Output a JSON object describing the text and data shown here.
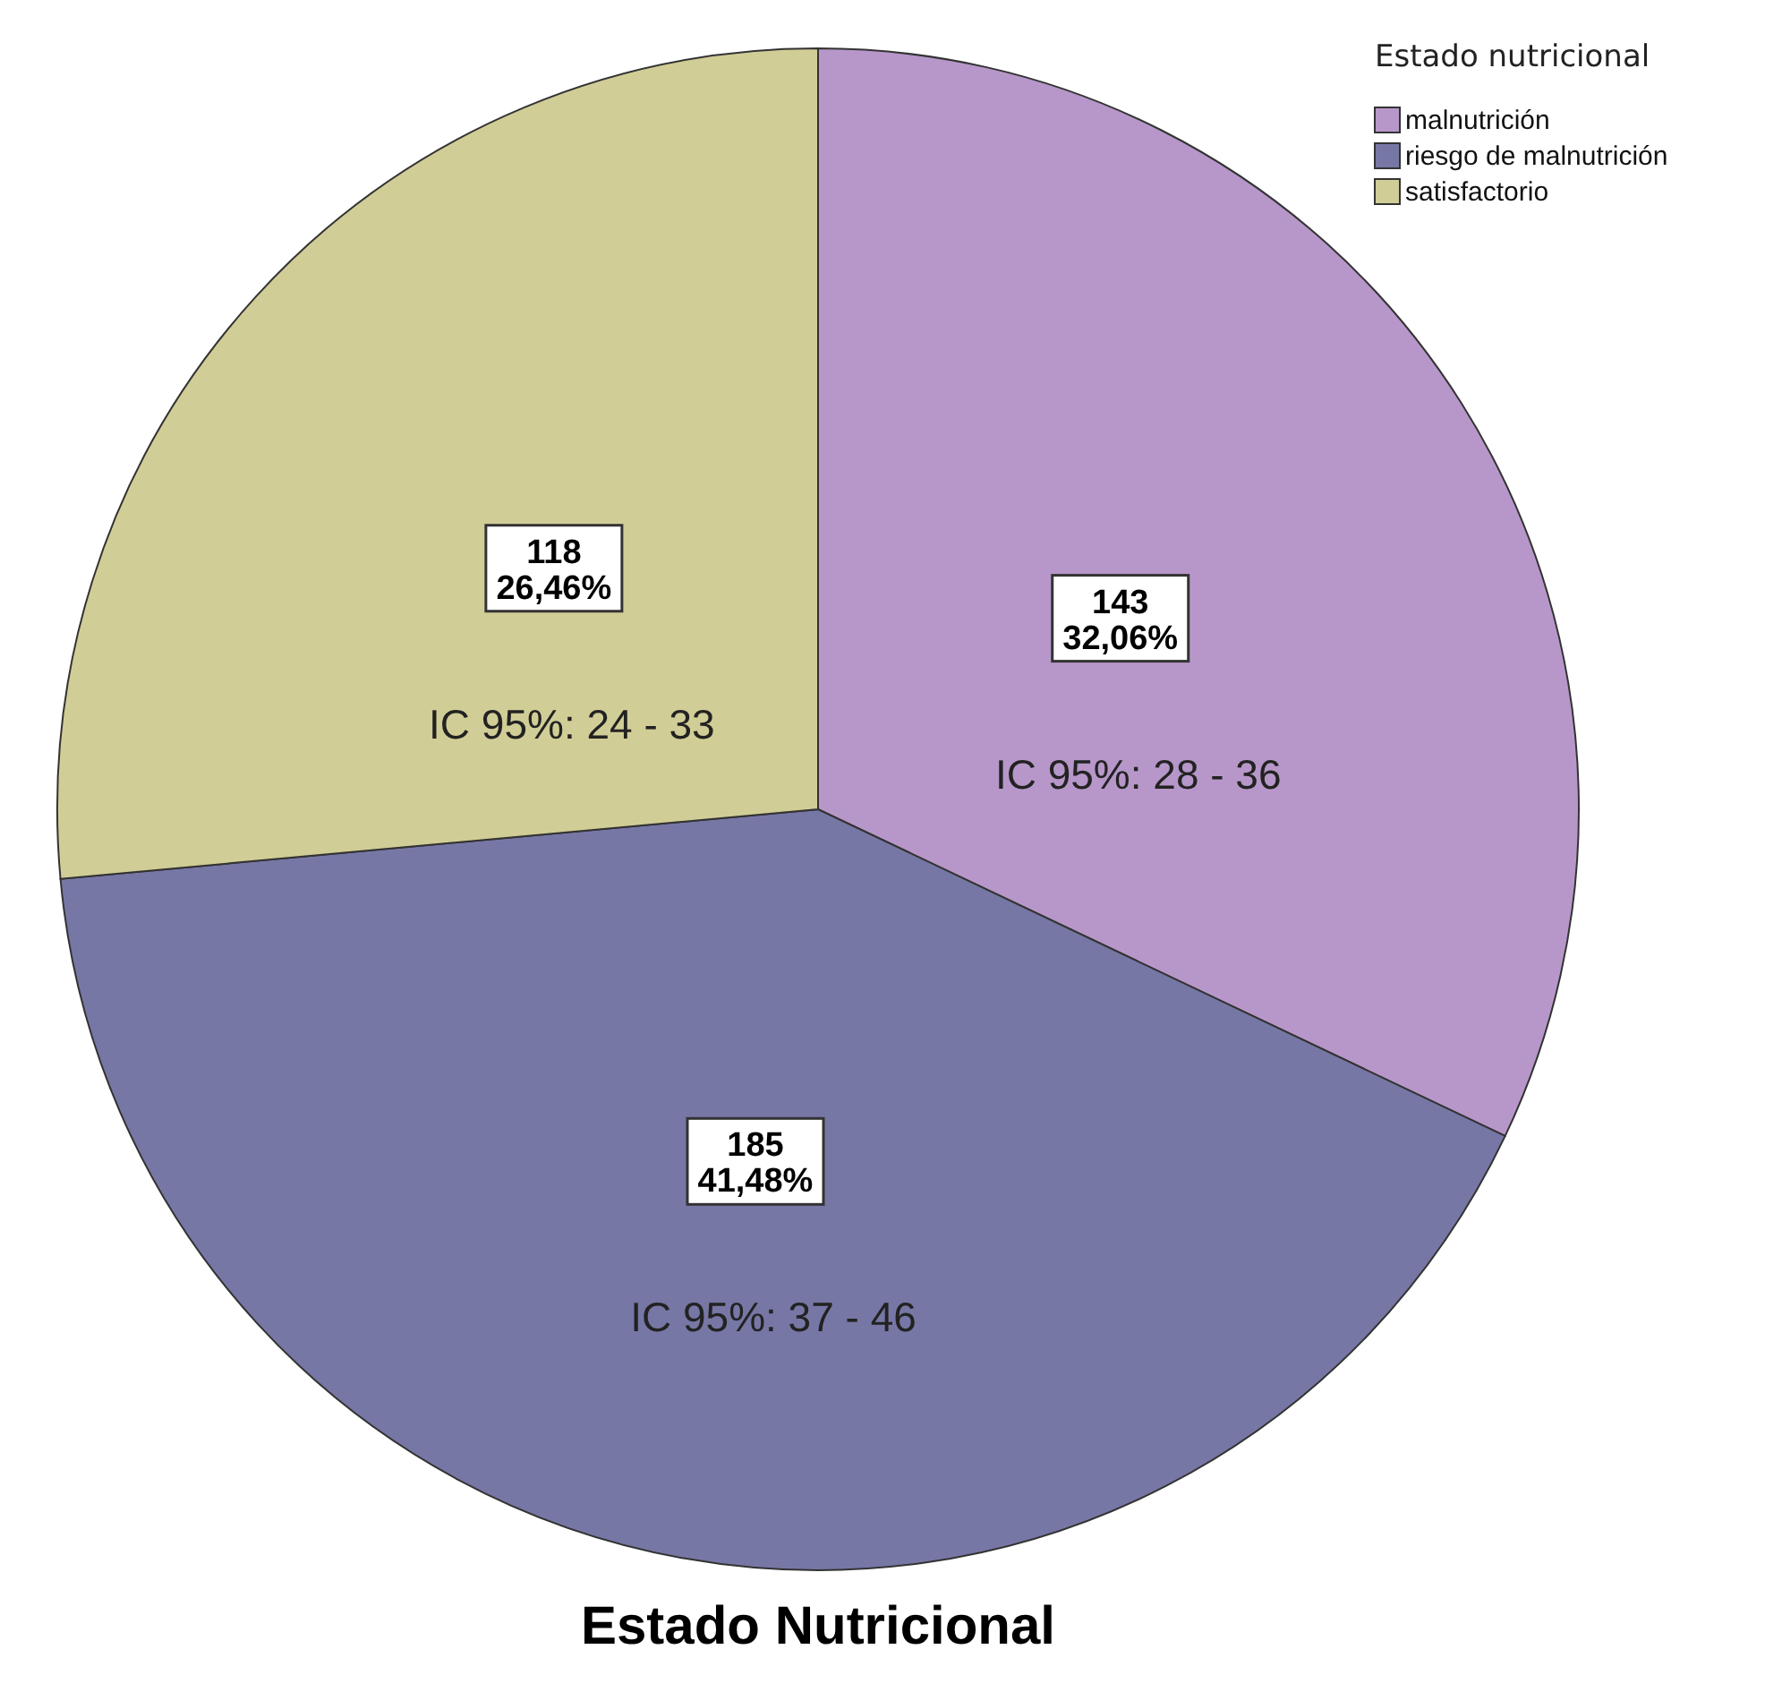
{
  "chart_data": {
    "type": "pie",
    "title": "Estado Nutricional",
    "legend_title": "Estado nutricional",
    "legend": "top right",
    "categories": [
      "malnutrición",
      "riesgo de malnutrición",
      "satisfactorio"
    ],
    "values": [
      143,
      185,
      118
    ],
    "colors": [
      "#b797c9",
      "#7777a6",
      "#d1cd96"
    ],
    "value_labels": [
      "143\n32,06%",
      "185\n41,48%",
      "118\n26,46%"
    ],
    "annotations": [
      "IC 95%: 28 - 36",
      "IC 95%: 37 - 46",
      "IC 95%: 24 - 33"
    ]
  }
}
